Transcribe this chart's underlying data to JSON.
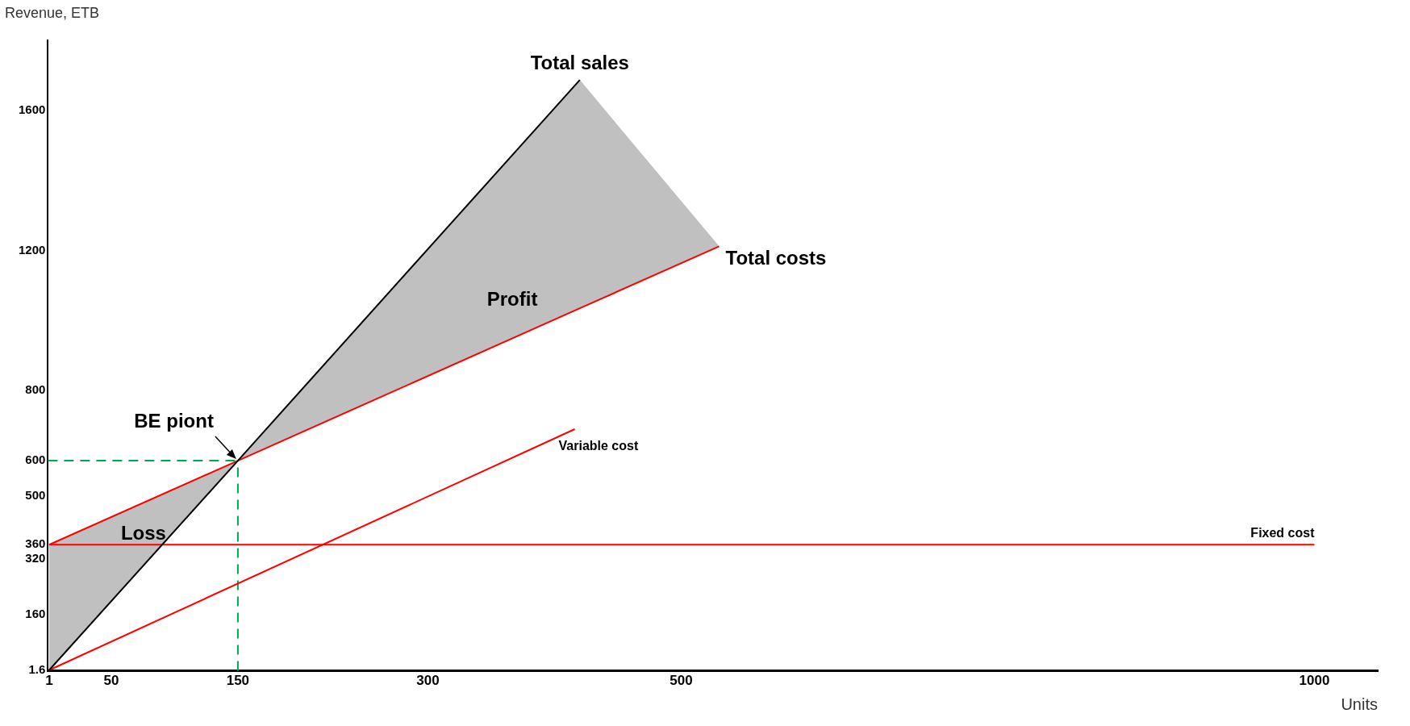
{
  "chart_data": {
    "type": "line",
    "xlabel": "Units",
    "ylabel": "Revenue, ETB",
    "xlim": [
      0,
      1050
    ],
    "xticks": [
      1,
      50,
      150,
      300,
      500,
      1000
    ],
    "ylim": [
      0,
      1800
    ],
    "yticks": [
      1.6,
      160,
      320,
      360,
      500,
      600,
      800,
      1200,
      1600
    ],
    "grid": false,
    "legend": false,
    "marker": "none",
    "series": [
      {
        "name": "Total sales",
        "color": "#000000",
        "x": [
          1,
          150,
          420
        ],
        "values": [
          2,
          600,
          1687
        ]
      },
      {
        "name": "Total costs",
        "color": "#ff0000",
        "x": [
          1,
          150,
          420,
          530
        ],
        "values": [
          360,
          600,
          1035,
          1212
        ],
        "lower": [
          2,
          600,
          1035,
          1212
        ],
        "upper": [
          360,
          600,
          1687,
          1212
        ]
      },
      {
        "name": "Variable cost",
        "color": "#ff0000",
        "x": [
          1,
          416
        ],
        "values": [
          2,
          690
        ]
      },
      {
        "name": "Fixed cost",
        "color": "#ff0000",
        "x": [
          1,
          1000
        ],
        "values": [
          360,
          360
        ]
      }
    ],
    "ref_lines": [
      {
        "axis": "x",
        "value": 150,
        "color": "#00a651",
        "line_style": "dashed"
      },
      {
        "axis": "y",
        "value": 600,
        "color": "#00a651",
        "line_style": "dashed"
      }
    ],
    "annotations": [
      {
        "text": "BE piont",
        "x": 150,
        "y": 600
      },
      "Loss",
      "Profit"
    ]
  }
}
